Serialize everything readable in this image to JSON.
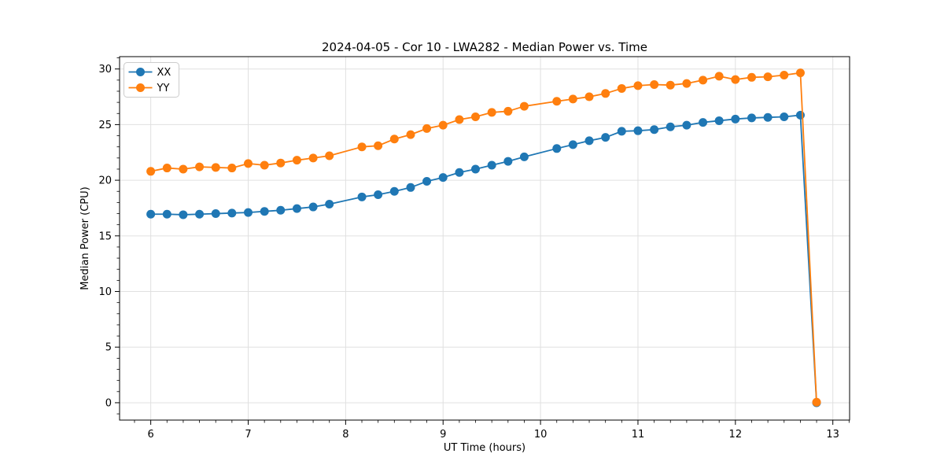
{
  "chart_data": {
    "type": "line",
    "title": "2024-04-05 - Cor 10 - LWA282 - Median Power vs. Time",
    "xlabel": "UT Time (hours)",
    "ylabel": "Median Power (CPU)",
    "xlim": [
      5.68,
      13.172
    ],
    "ylim": [
      -1.56,
      31.11
    ],
    "x_major_ticks": [
      6,
      7,
      8,
      9,
      10,
      11,
      12,
      13
    ],
    "y_major_ticks": [
      0,
      5,
      10,
      15,
      20,
      25,
      30
    ],
    "x_minor_step_hours": 0.1667,
    "y_minor_step": 1,
    "grid": "major-only",
    "grid_color": "#e0e0e0",
    "spine_color": "#000000",
    "background_color": "#ffffff",
    "legend_position": "upper-left",
    "note": "samples every 10 minutes; no samples at 8.000 and 10.000; both series drop to ~0 at final sample 12.833",
    "x": [
      6.0,
      6.167,
      6.333,
      6.5,
      6.667,
      6.833,
      7.0,
      7.167,
      7.333,
      7.5,
      7.667,
      7.833,
      8.167,
      8.333,
      8.5,
      8.667,
      8.833,
      9.0,
      9.167,
      9.333,
      9.5,
      9.667,
      9.833,
      10.167,
      10.333,
      10.5,
      10.667,
      10.833,
      11.0,
      11.167,
      11.333,
      11.5,
      11.667,
      11.833,
      12.0,
      12.167,
      12.333,
      12.5,
      12.667,
      12.833
    ],
    "series": [
      {
        "name": "XX",
        "color": "#1f77b4",
        "values": [
          16.95,
          16.95,
          16.9,
          16.95,
          17.0,
          17.05,
          17.1,
          17.2,
          17.3,
          17.45,
          17.6,
          17.85,
          18.5,
          18.7,
          19.0,
          19.35,
          19.9,
          20.25,
          20.7,
          21.0,
          21.35,
          21.7,
          22.1,
          22.85,
          23.2,
          23.55,
          23.85,
          24.4,
          24.45,
          24.55,
          24.8,
          24.95,
          25.2,
          25.35,
          25.5,
          25.6,
          25.65,
          25.7,
          25.85,
          0.0
        ]
      },
      {
        "name": "YY",
        "color": "#ff7f0e",
        "values": [
          20.8,
          21.1,
          21.0,
          21.2,
          21.15,
          21.1,
          21.5,
          21.35,
          21.55,
          21.8,
          22.0,
          22.2,
          23.0,
          23.1,
          23.7,
          24.1,
          24.65,
          24.95,
          25.45,
          25.7,
          26.1,
          26.2,
          26.65,
          27.1,
          27.3,
          27.5,
          27.8,
          28.25,
          28.5,
          28.6,
          28.55,
          28.7,
          29.0,
          29.35,
          29.05,
          29.25,
          29.3,
          29.45,
          29.65,
          0.05
        ]
      }
    ]
  }
}
